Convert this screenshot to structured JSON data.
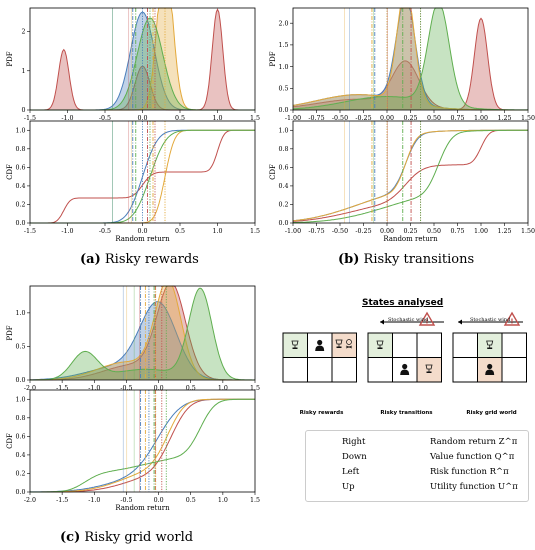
{
  "captions": {
    "a_label": "(a)",
    "a_text": "Risky rewards",
    "b_label": "(b)",
    "b_text": "Risky transitions",
    "c_label": "(c)",
    "c_text": "Risky grid world"
  },
  "states_panel": {
    "title": "States analysed",
    "wind_label": "Stochastic wind",
    "grids": [
      {
        "caption": "Risky rewards"
      },
      {
        "caption": "Risky transitions"
      },
      {
        "caption": "Risky grid world"
      }
    ]
  },
  "legend": {
    "actions": [
      {
        "name": "Right",
        "color": "#c0504d"
      },
      {
        "name": "Down",
        "color": "#4a7ebb"
      },
      {
        "name": "Left",
        "color": "#e3a93b"
      },
      {
        "name": "Up",
        "color": "#5fae4f"
      }
    ],
    "functions": [
      {
        "name": "Random return Z^π",
        "style": "solid"
      },
      {
        "name": "Value function Q^π",
        "style": "dotted"
      },
      {
        "name": "Risk function R^π",
        "style": "faint"
      },
      {
        "name": "Utility function U^π",
        "style": "dashdot"
      }
    ]
  },
  "colors": {
    "Right": "#c0504d",
    "Down": "#4a7ebb",
    "Left": "#e3a93b",
    "Up": "#5fae4f"
  },
  "chart_data": [
    {
      "panel": "a",
      "type": "area",
      "ylabel": "PDF",
      "xlim": [
        -1.5,
        1.5
      ],
      "ylim": [
        0,
        2.6
      ],
      "xticks": [
        -1.5,
        -1.0,
        -0.5,
        0.0,
        0.5,
        1.0,
        1.5
      ],
      "yticks": [
        0,
        1,
        2
      ],
      "series": [
        {
          "name": "Right",
          "components": [
            {
              "mu": -1.05,
              "sd": 0.07,
              "w": 0.27
            },
            {
              "mu": 0.0,
              "sd": 0.1,
              "w": 0.28
            },
            {
              "mu": 1.0,
              "sd": 0.07,
              "w": 0.45
            }
          ]
        },
        {
          "name": "Down",
          "components": [
            {
              "mu": 0.0,
              "sd": 0.16,
              "w": 1.0
            }
          ]
        },
        {
          "name": "Left",
          "components": [
            {
              "mu": 0.3,
              "sd": 0.1,
              "w": 1.0
            }
          ]
        },
        {
          "name": "Up",
          "components": [
            {
              "mu": 0.1,
              "sd": 0.17,
              "w": 1.0
            }
          ]
        }
      ]
    },
    {
      "panel": "a",
      "type": "line",
      "ylabel": "CDF",
      "xlabel": "Random return",
      "xlim": [
        -1.5,
        1.5
      ],
      "ylim": [
        0,
        1.1
      ],
      "xticks": [
        -1.5,
        -1.0,
        -0.5,
        0.0,
        0.5,
        1.0,
        1.5
      ],
      "yticks": [
        0.0,
        0.2,
        0.4,
        0.6,
        0.8,
        1.0
      ]
    },
    {
      "panel": "b",
      "type": "area",
      "ylabel": "PDF",
      "xlim": [
        -1.0,
        1.5
      ],
      "ylim": [
        0,
        2.35
      ],
      "xticks": [
        -1.0,
        -0.75,
        -0.5,
        -0.25,
        0.0,
        0.25,
        0.5,
        0.75,
        1.0,
        1.25,
        1.5
      ],
      "yticks": [
        0.0,
        0.5,
        1.0,
        1.5,
        2.0
      ],
      "series": [
        {
          "name": "Right",
          "components": [
            {
              "mu": 0.2,
              "sd": 0.14,
              "w": 0.35
            },
            {
              "mu": 1.0,
              "sd": 0.07,
              "w": 0.37
            },
            {
              "mu": -0.3,
              "sd": 0.45,
              "w": 0.28
            }
          ]
        },
        {
          "name": "Down",
          "components": [
            {
              "mu": 0.2,
              "sd": 0.1,
              "w": 0.6
            },
            {
              "mu": -0.3,
              "sd": 0.45,
              "w": 0.4
            }
          ]
        },
        {
          "name": "Left",
          "components": [
            {
              "mu": 0.2,
              "sd": 0.09,
              "w": 0.6
            },
            {
              "mu": -0.3,
              "sd": 0.45,
              "w": 0.4
            }
          ]
        },
        {
          "name": "Up",
          "components": [
            {
              "mu": 0.55,
              "sd": 0.11,
              "w": 0.65
            },
            {
              "mu": 0.0,
              "sd": 0.45,
              "w": 0.35
            }
          ]
        }
      ]
    },
    {
      "panel": "b",
      "type": "line",
      "ylabel": "CDF",
      "xlabel": "Random return",
      "xlim": [
        -1.0,
        1.5
      ],
      "ylim": [
        0,
        1.1
      ],
      "xticks": [
        -1.0,
        -0.75,
        -0.5,
        -0.25,
        0.0,
        0.25,
        0.5,
        0.75,
        1.0,
        1.25,
        1.5
      ],
      "yticks": [
        0.0,
        0.2,
        0.4,
        0.6,
        0.8,
        1.0
      ]
    },
    {
      "panel": "c",
      "type": "area",
      "ylabel": "PDF",
      "xlim": [
        -2.0,
        1.5
      ],
      "ylim": [
        0,
        1.4
      ],
      "xticks": [
        -2.0,
        -1.5,
        -1.0,
        -0.5,
        0.0,
        0.5,
        1.0,
        1.5
      ],
      "yticks": [
        0.0,
        0.5,
        1.0
      ],
      "series": [
        {
          "name": "Right",
          "components": [
            {
              "mu": 0.2,
              "sd": 0.22,
              "w": 0.75
            },
            {
              "mu": -0.4,
              "sd": 0.45,
              "w": 0.25
            }
          ]
        },
        {
          "name": "Down",
          "components": [
            {
              "mu": 0.0,
              "sd": 0.28,
              "w": 0.75
            },
            {
              "mu": -0.6,
              "sd": 0.5,
              "w": 0.25
            }
          ]
        },
        {
          "name": "Left",
          "components": [
            {
              "mu": 0.15,
              "sd": 0.2,
              "w": 0.7
            },
            {
              "mu": -0.5,
              "sd": 0.45,
              "w": 0.3
            }
          ]
        },
        {
          "name": "Up",
          "components": [
            {
              "mu": 0.65,
              "sd": 0.18,
              "w": 0.6
            },
            {
              "mu": -1.15,
              "sd": 0.2,
              "w": 0.2
            },
            {
              "mu": -0.2,
              "sd": 0.5,
              "w": 0.2
            }
          ]
        }
      ]
    },
    {
      "panel": "c",
      "type": "line",
      "ylabel": "CDF",
      "xlabel": "Random return",
      "xlim": [
        -2.0,
        1.5
      ],
      "ylim": [
        0,
        1.1
      ],
      "xticks": [
        -2.0,
        -1.5,
        -1.0,
        -0.5,
        0.0,
        0.5,
        1.0,
        1.5
      ],
      "yticks": [
        0.0,
        0.2,
        0.4,
        0.6,
        0.8,
        1.0
      ]
    }
  ]
}
